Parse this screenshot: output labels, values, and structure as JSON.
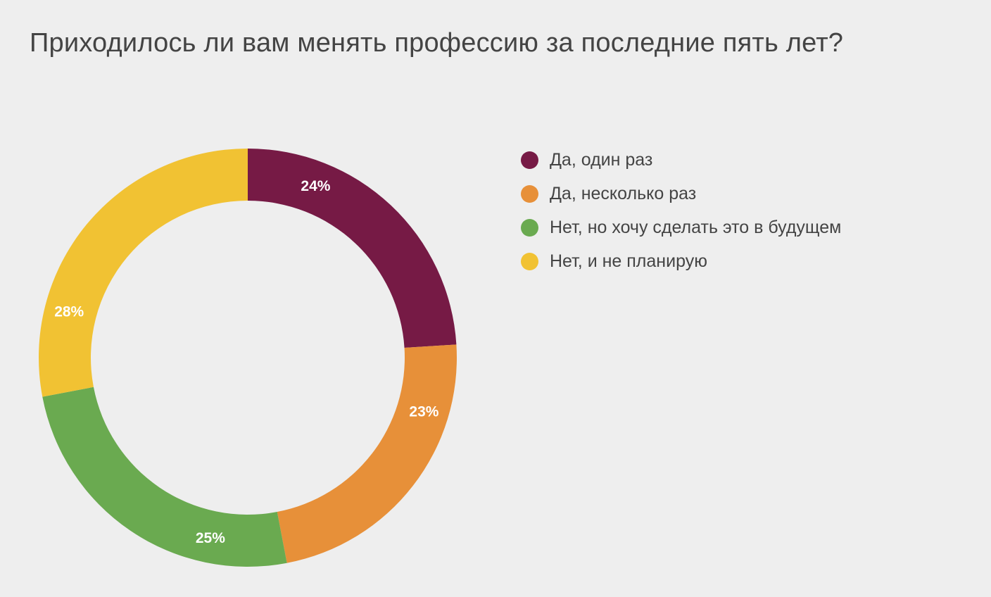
{
  "chart_data": {
    "type": "pie",
    "variant": "donut",
    "title": "Приходилось ли вам менять профессию за последние пять лет?",
    "categories": [
      "Да, один раз",
      "Да, несколько раз",
      "Нет, но хочу сделать это в будущем",
      "Нет, и не планирую"
    ],
    "values": [
      24,
      23,
      25,
      28
    ],
    "labels": [
      "24%",
      "23%",
      "25%",
      "28%"
    ],
    "colors": [
      "#761a45",
      "#e79039",
      "#6aaa50",
      "#f1c233"
    ],
    "unit": "%",
    "legend_placement": "right",
    "start_angle": "top",
    "direction": "clockwise"
  },
  "style": {
    "background": "#eeeeee",
    "text_color": "#444444",
    "label_color": "#ffffff"
  }
}
